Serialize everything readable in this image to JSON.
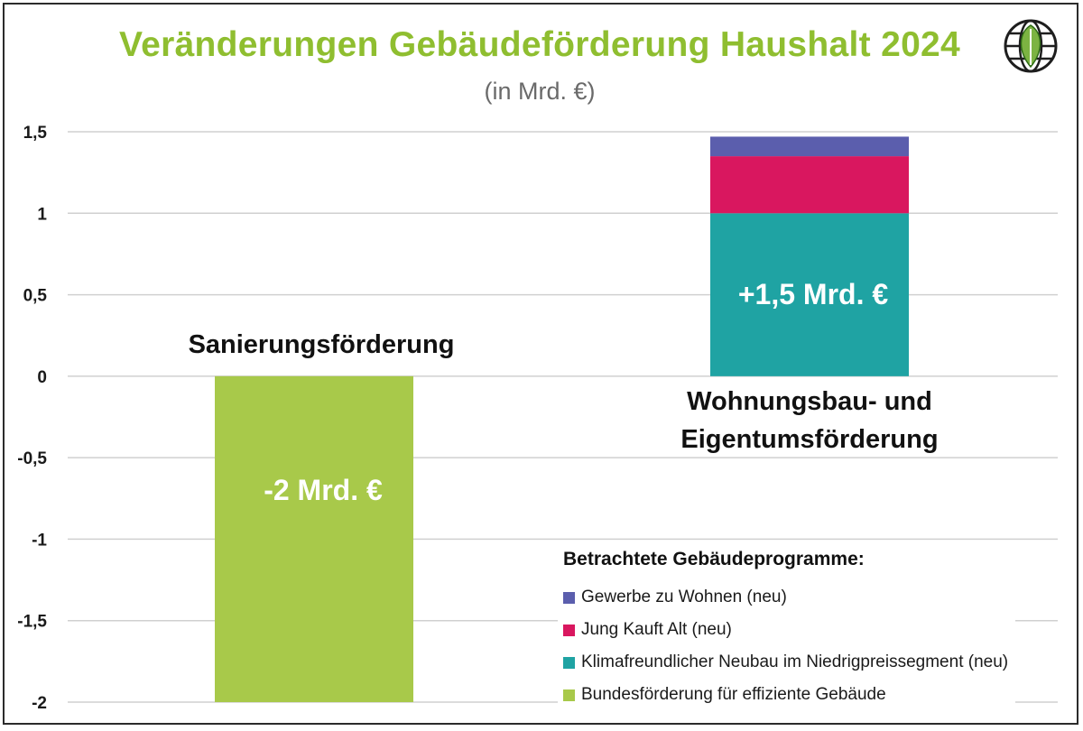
{
  "title": "Veränderungen Gebäudeförderung Haushalt 2024",
  "subtitle": "(in Mrd. €)",
  "logo": {
    "icon": "globe-leaf-icon"
  },
  "chart_data": {
    "type": "bar",
    "stacked": true,
    "categories": [
      "Sanierungsförderung",
      "Wohnungsbau- und Eigentumsförderung"
    ],
    "y_ticks": [
      1.5,
      1,
      0.5,
      0,
      -0.5,
      -1,
      -1.5,
      -2
    ],
    "y_tick_labels": [
      "1,5",
      "1",
      "0,5",
      "0",
      "-0,5",
      "-1",
      "-1,5",
      "-2"
    ],
    "ylim": [
      -2,
      1.5
    ],
    "grid": true,
    "legend_position": "bottom-right",
    "legend_title": "Betrachtete Gebäudeprogramme:",
    "series": [
      {
        "name": "Bundesförderung für effiziente Gebäude",
        "color": "#a8c94a",
        "values": [
          -2,
          0
        ]
      },
      {
        "name": "Klimafreundlicher Neubau im Niedrigpreissegment (neu)",
        "color": "#1fa3a3",
        "values": [
          0,
          1.0
        ]
      },
      {
        "name": "Jung Kauft Alt (neu)",
        "color": "#d9175f",
        "values": [
          0,
          0.35
        ]
      },
      {
        "name": "Gewerbe zu Wohnen (neu)",
        "color": "#5b5ead",
        "values": [
          0,
          0.12
        ]
      }
    ],
    "legend_order": [
      3,
      2,
      1,
      0
    ],
    "annotations": [
      "-2 Mrd. €",
      "+1,5 Mrd. €"
    ]
  }
}
